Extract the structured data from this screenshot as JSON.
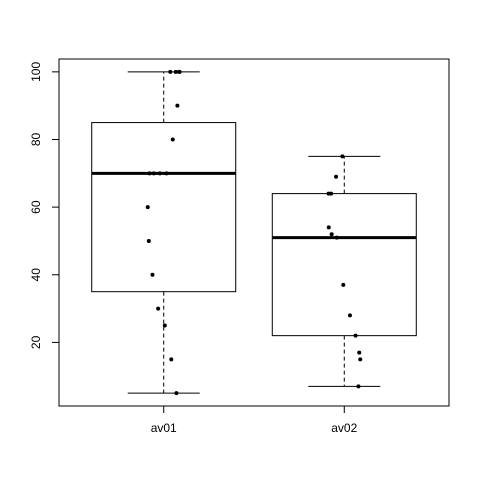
{
  "chart_data": {
    "type": "boxplot",
    "title": "",
    "xlabel": "",
    "ylabel": "",
    "categories": [
      "av01",
      "av02"
    ],
    "y_ticks": [
      20,
      40,
      60,
      80,
      100
    ],
    "y_tick_labels": [
      "20",
      "40",
      "60",
      "80",
      "100"
    ],
    "ylim": [
      1.2,
      103.8
    ],
    "grid": false,
    "boxes": [
      {
        "category": "av01",
        "whisker_low": 5,
        "q1": 35,
        "median": 70,
        "q3": 85,
        "whisker_high": 100
      },
      {
        "category": "av02",
        "whisker_low": 7,
        "q1": 22,
        "median": 51,
        "q3": 64,
        "whisker_high": 75
      }
    ],
    "points": [
      {
        "category": "av01",
        "values": [
          100,
          100,
          100,
          100,
          90,
          80,
          70,
          70,
          70,
          70,
          60,
          50,
          40,
          30,
          25,
          15,
          5
        ]
      },
      {
        "category": "av02",
        "values": [
          75,
          69,
          64,
          64,
          54,
          52,
          51,
          37,
          28,
          22,
          17,
          15,
          7
        ]
      }
    ]
  }
}
